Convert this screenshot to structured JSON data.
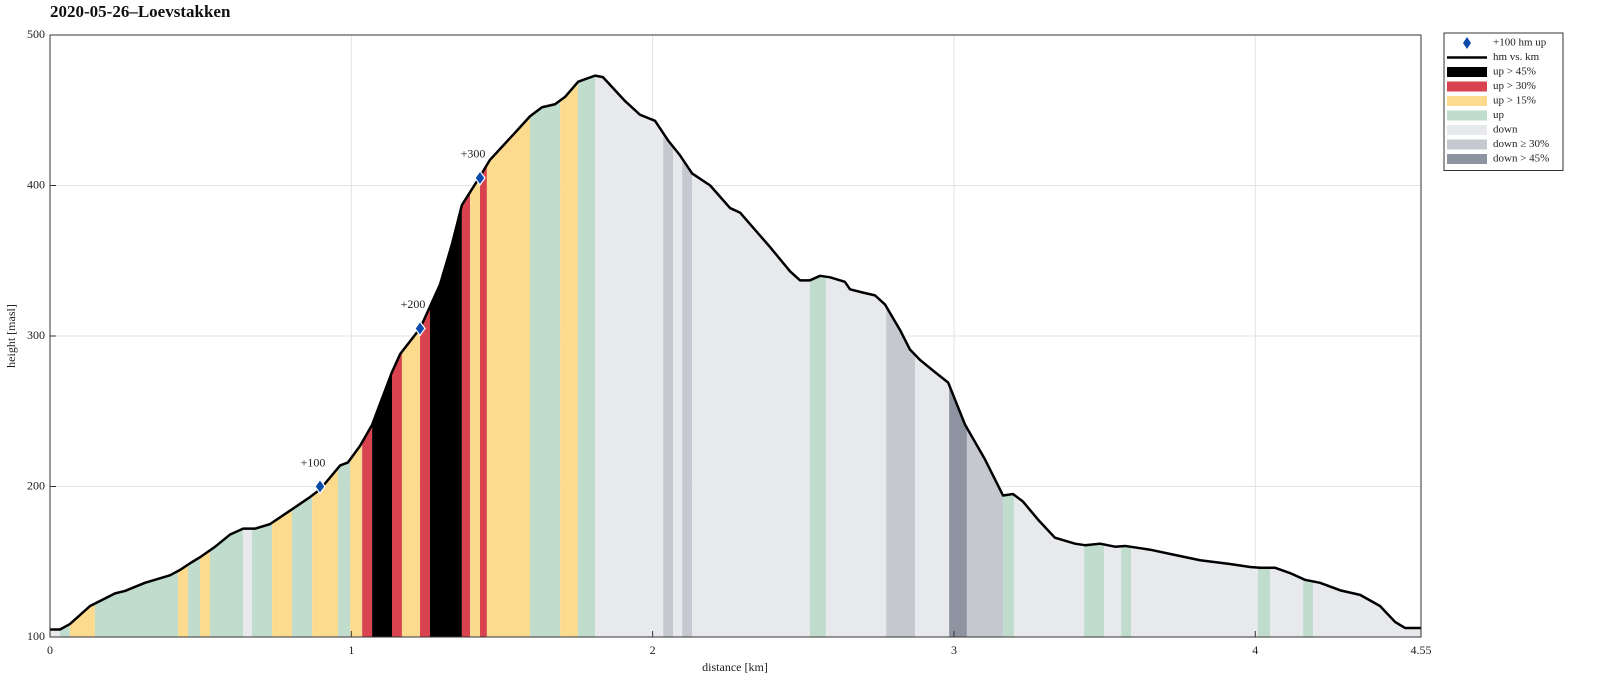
{
  "chart_data": {
    "type": "elevation-profile",
    "title": "2020-05-26–Loevstakken",
    "x_label": "distance [km]",
    "y_label": "height [masl]",
    "xlim": [
      0,
      4.55
    ],
    "ylim": [
      100,
      500
    ],
    "xticks": [
      0,
      1,
      2,
      3,
      4,
      4.55
    ],
    "yticks": [
      100,
      200,
      300,
      400,
      500
    ],
    "grid": true,
    "legend": "outside-right",
    "series": [
      {
        "name": "+100 hm up",
        "color": "#0a4aa8",
        "x": [
          0.896,
          1.228,
          1.427
        ],
        "values": [
          200,
          305,
          405
        ],
        "annotations": [
          "+100",
          "+200",
          "+300"
        ]
      },
      {
        "name": "hm vs. km",
        "color": "#000000",
        "x": [
          0,
          0.033,
          0.066,
          0.133,
          0.216,
          0.249,
          0.315,
          0.398,
          0.431,
          0.465,
          0.498,
          0.548,
          0.597,
          0.641,
          0.68,
          0.73,
          0.797,
          0.863,
          0.896,
          0.963,
          0.989,
          1.029,
          1.069,
          1.135,
          1.162,
          1.228,
          1.294,
          1.334,
          1.367,
          1.424,
          1.46,
          1.543,
          1.593,
          1.633,
          1.676,
          1.71,
          1.753,
          1.809,
          1.835,
          1.909,
          1.958,
          2.008,
          2.051,
          2.091,
          2.131,
          2.191,
          2.257,
          2.29,
          2.39,
          2.456,
          2.489,
          2.522,
          2.556,
          2.589,
          2.638,
          2.655,
          2.695,
          2.738,
          2.771,
          2.821,
          2.854,
          2.888,
          2.937,
          2.981,
          3.037,
          3.103,
          3.163,
          3.196,
          3.229,
          3.279,
          3.335,
          3.402,
          3.435,
          3.485,
          3.535,
          3.568,
          3.651,
          3.734,
          3.817,
          3.916,
          3.983,
          4.016,
          4.066,
          4.115,
          4.165,
          4.215,
          4.282,
          4.348,
          4.414,
          4.464,
          4.497,
          4.55
        ],
        "values": [
          105,
          105,
          108.6,
          120.6,
          129,
          130.6,
          136,
          141,
          144.5,
          149,
          153,
          160,
          168,
          172,
          172,
          175,
          184,
          193,
          198,
          214,
          216,
          227,
          241,
          276,
          288,
          305,
          334,
          361,
          387,
          405,
          417,
          435,
          446,
          452,
          454,
          459,
          469,
          473,
          472,
          456,
          447,
          443,
          430,
          420,
          408,
          400,
          385,
          382,
          359,
          343,
          337,
          337,
          340,
          339,
          336,
          331,
          329,
          327,
          321,
          304,
          291,
          284,
          276,
          269,
          241,
          218,
          194,
          195,
          190,
          178,
          166,
          162,
          161,
          162,
          160,
          160.5,
          158,
          154.5,
          151,
          148.5,
          146.5,
          146,
          146,
          142.5,
          138,
          136,
          131,
          128,
          120.6,
          110,
          106,
          106
        ]
      }
    ],
    "band_classes": [
      {
        "name": "up > 45%",
        "color": "#000000"
      },
      {
        "name": "up > 30%",
        "color": "#d9434f"
      },
      {
        "name": "up > 15%",
        "color": "#fddb8e"
      },
      {
        "name": "up",
        "color": "#bfdccd"
      },
      {
        "name": "down",
        "color": "#e8e9ec"
      },
      {
        "name": "down ≥ 30%",
        "color": "#c6c8d0"
      },
      {
        "name": "down > 45%",
        "color": "#8d93a0"
      }
    ],
    "bands": {
      "edges": [
        0,
        0.033,
        0.066,
        0.149,
        0.425,
        0.458,
        0.498,
        0.531,
        0.641,
        0.67,
        0.737,
        0.803,
        0.87,
        0.956,
        0.996,
        1.036,
        1.069,
        1.135,
        1.168,
        1.228,
        1.261,
        1.367,
        1.394,
        1.427,
        1.45,
        1.593,
        1.693,
        1.752,
        1.809,
        2.035,
        2.068,
        2.098,
        2.131,
        2.522,
        2.575,
        2.775,
        2.871,
        2.984,
        3.043,
        3.163,
        3.199,
        3.432,
        3.498,
        3.555,
        3.588,
        4.009,
        4.049,
        4.159,
        4.192,
        4.55
      ],
      "classes": [
        4,
        3,
        2,
        3,
        2,
        3,
        2,
        3,
        4,
        3,
        2,
        3,
        2,
        3,
        2,
        1,
        0,
        1,
        2,
        1,
        0,
        1,
        2,
        1,
        2,
        3,
        2,
        3,
        4,
        5,
        4,
        5,
        4,
        3,
        4,
        5,
        4,
        6,
        5,
        3,
        4,
        3,
        4,
        3,
        4,
        3,
        4,
        3,
        4
      ]
    }
  }
}
